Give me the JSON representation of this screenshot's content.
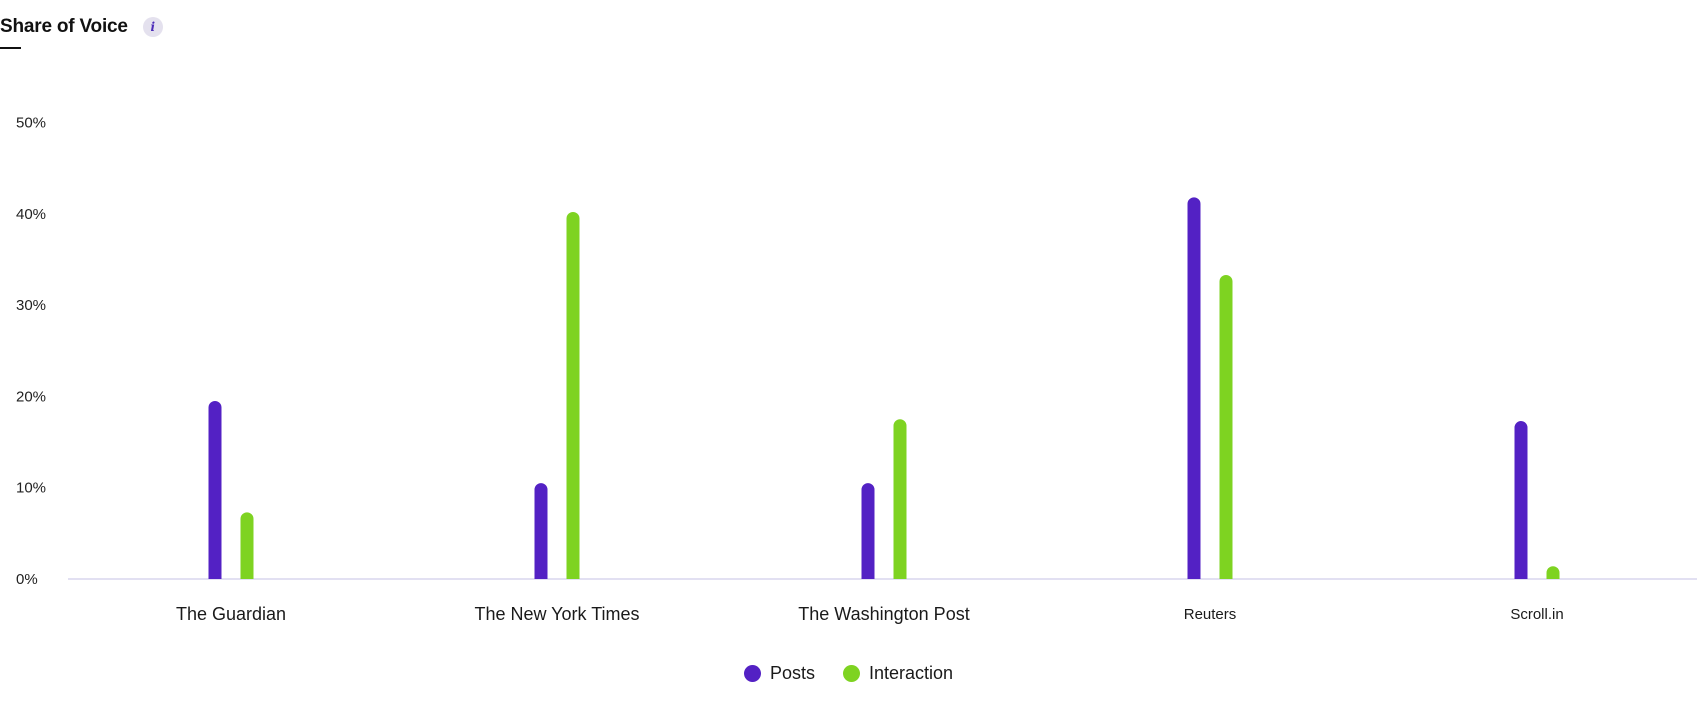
{
  "header": {
    "title": "Share of Voice",
    "info_glyph": "i",
    "info_icon": "info-icon"
  },
  "colors": {
    "posts": "#5321c4",
    "interaction": "#7ed321",
    "axis": "#d9d6ee"
  },
  "chart_data": {
    "type": "bar",
    "title": "Share of Voice",
    "xlabel": "",
    "ylabel": "",
    "categories": [
      "The Guardian",
      "The New York Times",
      "The Washington Post",
      "Reuters",
      "Scroll.in"
    ],
    "series": [
      {
        "name": "Posts",
        "values": [
          19.5,
          10.5,
          10.5,
          41.8,
          17.3
        ]
      },
      {
        "name": "Interaction",
        "values": [
          7.3,
          40.2,
          17.5,
          33.3,
          1.4
        ]
      }
    ],
    "y_ticks": [
      "0%",
      "10%",
      "20%",
      "30%",
      "40%",
      "50%"
    ],
    "ylim": [
      0,
      50
    ],
    "grid": false,
    "legend_position": "bottom-center"
  }
}
